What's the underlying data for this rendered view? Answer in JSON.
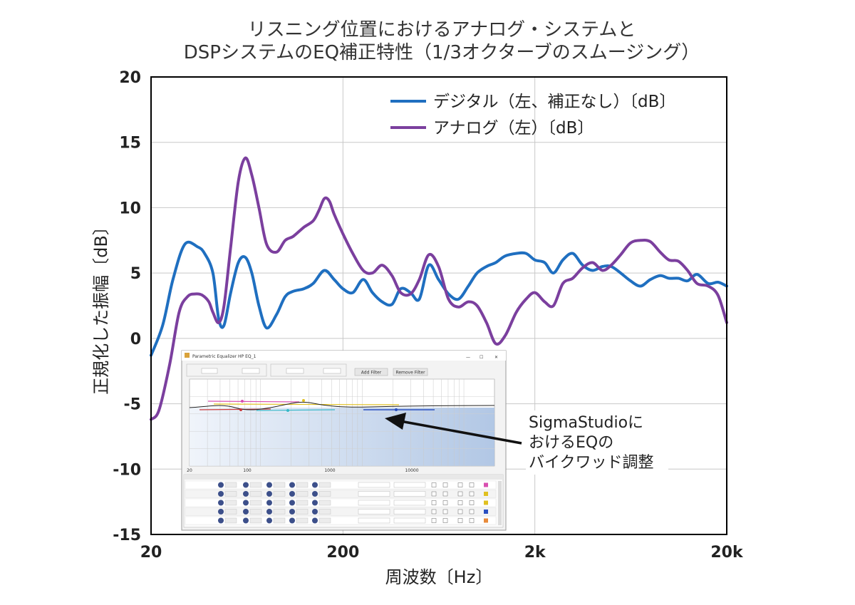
{
  "chart_data": {
    "type": "line",
    "title_line1": "リスニング位置におけるアナログ・システムと",
    "title_line2": "DSPシステムのEQ補正特性（1/3オクターブのスムージング）",
    "xlabel": "周波数〔Hz〕",
    "ylabel": "正規化した振幅〔dB〕",
    "xscale": "log",
    "xlim": [
      20,
      20000
    ],
    "ylim": [
      -15,
      20
    ],
    "x_ticks": [
      20,
      200,
      2000,
      20000
    ],
    "x_tick_labels": [
      "20",
      "200",
      "2k",
      "20k"
    ],
    "y_ticks": [
      20,
      15,
      10,
      5,
      0,
      -5,
      -10,
      -15
    ],
    "y_tick_labels": [
      "20",
      "15",
      "10",
      "5",
      "0",
      "-5",
      "-10",
      "-15"
    ],
    "grid": true,
    "legend_position": "top-right",
    "series": [
      {
        "name": "デジタル（左、補正なし）〔dB〕",
        "color": "#1f6fc0",
        "x": [
          20,
          23,
          26,
          30,
          35,
          38,
          42,
          45,
          48,
          52,
          57,
          62,
          67,
          73,
          80,
          90,
          100,
          110,
          125,
          140,
          160,
          180,
          200,
          225,
          255,
          285,
          320,
          360,
          400,
          450,
          500,
          560,
          630,
          710,
          800,
          900,
          1000,
          1120,
          1250,
          1400,
          1600,
          1800,
          2000,
          2250,
          2500,
          2800,
          3150,
          3550,
          4000,
          4500,
          5000,
          5600,
          6300,
          7100,
          8000,
          9000,
          10000,
          11200,
          12500,
          14000,
          16000,
          18000,
          20000
        ],
        "y": [
          -1.3,
          1.0,
          4.5,
          7.2,
          7.0,
          6.5,
          5.0,
          1.5,
          1.0,
          3.5,
          5.8,
          6.2,
          5.0,
          2.5,
          0.8,
          1.8,
          3.2,
          3.6,
          3.8,
          4.2,
          5.2,
          4.5,
          3.8,
          3.5,
          4.5,
          3.5,
          2.8,
          2.6,
          3.8,
          3.5,
          3.0,
          5.6,
          4.5,
          3.4,
          3.0,
          4.0,
          5.0,
          5.5,
          5.8,
          6.3,
          6.5,
          6.5,
          6.0,
          5.8,
          5.0,
          6.0,
          6.5,
          5.6,
          5.2,
          5.5,
          5.5,
          5.0,
          4.4,
          4.0,
          4.5,
          4.8,
          4.6,
          4.6,
          4.4,
          4.9,
          4.2,
          4.3,
          4.0
        ]
      },
      {
        "name": "アナログ（左）〔dB〕",
        "color": "#7b3f9e",
        "x": [
          20,
          22,
          25,
          28,
          31,
          34,
          37,
          40,
          42,
          45,
          48,
          52,
          57,
          62,
          67,
          73,
          80,
          90,
          100,
          110,
          125,
          140,
          150,
          160,
          170,
          180,
          200,
          225,
          255,
          285,
          320,
          360,
          400,
          450,
          500,
          560,
          630,
          710,
          800,
          900,
          1000,
          1120,
          1250,
          1400,
          1600,
          1800,
          2000,
          2250,
          2500,
          2800,
          3150,
          3550,
          4000,
          4500,
          5000,
          5600,
          6300,
          7100,
          8000,
          9000,
          10000,
          11200,
          12500,
          14000,
          16000,
          18000,
          20000
        ],
        "y": [
          -6.2,
          -5.5,
          -2.0,
          2.0,
          3.2,
          3.4,
          3.3,
          2.8,
          2.0,
          1.2,
          2.5,
          7.0,
          12.0,
          13.8,
          12.5,
          10.0,
          7.2,
          6.6,
          7.5,
          7.8,
          8.5,
          9.0,
          9.8,
          10.7,
          10.5,
          9.5,
          8.0,
          6.5,
          5.2,
          5.0,
          5.6,
          4.8,
          3.5,
          3.4,
          4.5,
          6.4,
          5.5,
          3.0,
          2.4,
          2.8,
          2.5,
          1.2,
          -0.4,
          0.2,
          2.0,
          3.0,
          3.5,
          2.8,
          2.5,
          4.2,
          4.6,
          5.4,
          5.8,
          5.2,
          5.6,
          6.4,
          7.3,
          7.5,
          7.4,
          6.6,
          6.0,
          5.9,
          5.2,
          4.2,
          4.0,
          3.3,
          1.2
        ]
      }
    ],
    "inset": {
      "window_title": "Parametric Equalizer HP EQ_1",
      "button_add": "Add Filter",
      "button_remove": "Remove Filter",
      "axis_labels": [
        "20",
        "100",
        "1000",
        "10000"
      ],
      "annotation_line1": "SigmaStudioに",
      "annotation_line2": "おけるEQの",
      "annotation_line3": "バイクワッド調整"
    }
  }
}
